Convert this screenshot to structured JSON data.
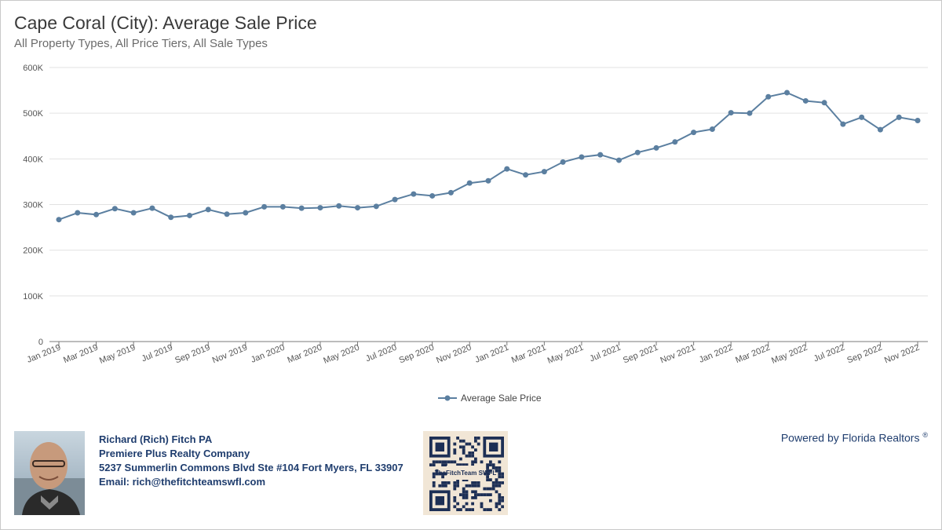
{
  "header": {
    "title": "Cape Coral (City): Average Sale Price",
    "subtitle": "All Property Types, All Price Tiers, All Sale Types"
  },
  "chart_data": {
    "type": "line",
    "title": "Cape Coral (City): Average Sale Price",
    "subtitle": "All Property Types, All Price Tiers, All Sale Types",
    "xlabel": "",
    "ylabel": "",
    "ylim": [
      0,
      600000
    ],
    "yticks": [
      0,
      100000,
      200000,
      300000,
      400000,
      500000,
      600000
    ],
    "ytick_labels": [
      "0",
      "100K",
      "200K",
      "300K",
      "400K",
      "500K",
      "600K"
    ],
    "grid": true,
    "legend": "bottom-center",
    "color": "#5b7fa0",
    "categories": [
      "Jan 2019",
      "Feb 2019",
      "Mar 2019",
      "Apr 2019",
      "May 2019",
      "Jun 2019",
      "Jul 2019",
      "Aug 2019",
      "Sep 2019",
      "Oct 2019",
      "Nov 2019",
      "Dec 2019",
      "Jan 2020",
      "Feb 2020",
      "Mar 2020",
      "Apr 2020",
      "May 2020",
      "Jun 2020",
      "Jul 2020",
      "Aug 2020",
      "Sep 2020",
      "Oct 2020",
      "Nov 2020",
      "Dec 2020",
      "Jan 2021",
      "Feb 2021",
      "Mar 2021",
      "Apr 2021",
      "May 2021",
      "Jun 2021",
      "Jul 2021",
      "Aug 2021",
      "Sep 2021",
      "Oct 2021",
      "Nov 2021",
      "Dec 2021",
      "Jan 2022",
      "Feb 2022",
      "Mar 2022",
      "Apr 2022",
      "May 2022",
      "Jun 2022",
      "Jul 2022",
      "Aug 2022",
      "Sep 2022",
      "Oct 2022",
      "Nov 2022"
    ],
    "xtick_labels": [
      "Jan 2019",
      "Mar 2019",
      "May 2019",
      "Jul 2019",
      "Sep 2019",
      "Nov 2019",
      "Jan 2020",
      "Mar 2020",
      "May 2020",
      "Jul 2020",
      "Sep 2020",
      "Nov 2020",
      "Jan 2021",
      "Mar 2021",
      "May 2021",
      "Jul 2021",
      "Sep 2021",
      "Nov 2021",
      "Jan 2022",
      "Mar 2022",
      "May 2022",
      "Jul 2022",
      "Sep 2022",
      "Nov 2022"
    ],
    "series": [
      {
        "name": "Average Sale Price",
        "values": [
          267000,
          282000,
          278000,
          291000,
          282000,
          292000,
          272000,
          276000,
          289000,
          279000,
          282000,
          295000,
          295000,
          292000,
          293000,
          297000,
          293000,
          296000,
          311000,
          323000,
          319000,
          326000,
          347000,
          352000,
          378000,
          365000,
          372000,
          393000,
          404000,
          409000,
          397000,
          414000,
          424000,
          437000,
          458000,
          465000,
          501000,
          500000,
          536000,
          545000,
          527000,
          523000,
          476000,
          491000,
          464000,
          491000,
          484000
        ]
      }
    ]
  },
  "footer": {
    "agent_name": "Richard (Rich) Fitch PA",
    "company": "Premiere Plus Realty Company",
    "address": "5237 Summerlin Commons Blvd Ste #104 Fort Myers, FL 33907",
    "email": "Email: rich@thefitchteamswfl.com",
    "qr_logo_text": "TheFitchTeam SWFL",
    "powered_by": "Powered by Florida Realtors",
    "registered_mark": "®"
  }
}
